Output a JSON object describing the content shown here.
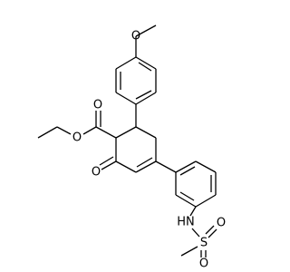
{
  "atoms": [
    {
      "label": "O"
    },
    {
      "label": "O"
    },
    {
      "label": "O"
    },
    {
      "label": "O"
    },
    {
      "label": "HN"
    },
    {
      "label": "S"
    },
    {
      "label": "O"
    },
    {
      "label": "O"
    }
  ]
}
